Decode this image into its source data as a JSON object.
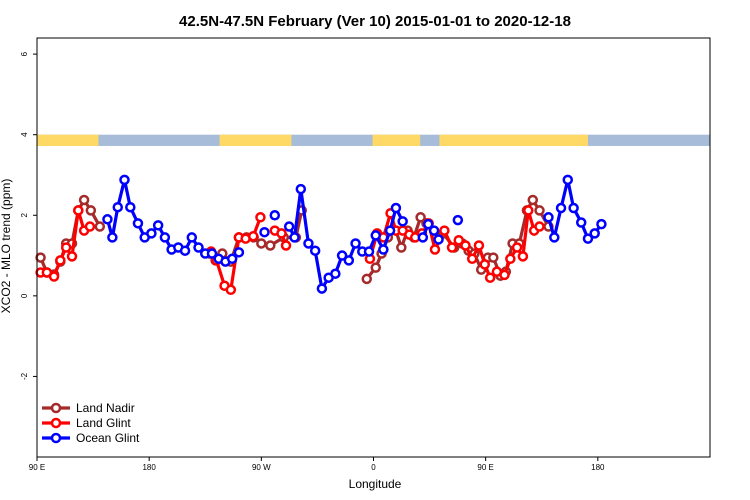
{
  "chart_data": {
    "type": "line",
    "title": "42.5N-47.5N February (Ver 10)   2015-01-01 to 2020-12-18",
    "xlabel": "Longitude",
    "ylabel": "XCO2 - MLO trend (ppm)",
    "xlim": [
      0,
      1.5
    ],
    "ylim": [
      -4,
      6.4
    ],
    "grid": false,
    "legend_position": "bottom-left",
    "x_ticks": [
      {
        "value": 0,
        "label": "90 E"
      },
      {
        "value": 0.25,
        "label": "180"
      },
      {
        "value": 0.5,
        "label": "90 W"
      },
      {
        "value": 0.75,
        "label": "0"
      },
      {
        "value": 1.0,
        "label": "90 E"
      },
      {
        "value": 1.25,
        "label": "180"
      }
    ],
    "y_ticks": [
      {
        "value": -2,
        "label": "-2"
      },
      {
        "value": 0,
        "label": "0"
      },
      {
        "value": 2,
        "label": "2"
      },
      {
        "value": 4,
        "label": "4"
      },
      {
        "value": 6,
        "label": "6"
      }
    ],
    "land_ocean_band": {
      "y_min": 3.72,
      "y_max": 4.0,
      "land_color": "#FFD966",
      "ocean_color": "#A7BCD9",
      "land_segments": [
        [
          0.0,
          0.137
        ],
        [
          0.407,
          0.567
        ],
        [
          0.748,
          0.854
        ],
        [
          0.897,
          1.16
        ],
        [
          1.157,
          1.228
        ]
      ]
    },
    "series": [
      {
        "name": "Land Nadir",
        "color": "#A52A2A",
        "segments": [
          [
            [
              0.008,
              0.95
            ],
            [
              0.022,
              0.58
            ],
            [
              0.038,
              0.53
            ],
            [
              0.052,
              0.85
            ],
            [
              0.065,
              1.3
            ],
            [
              0.078,
              1.3
            ],
            [
              0.092,
              2.12
            ],
            [
              0.105,
              2.38
            ],
            [
              0.12,
              2.12
            ],
            [
              0.14,
              1.72
            ]
          ],
          [
            [
              0.385,
              1.05
            ],
            [
              0.398,
              0.88
            ],
            [
              0.413,
              1.05
            ],
            [
              0.432,
              0.85
            ],
            [
              0.45,
              1.45
            ],
            [
              0.467,
              1.45
            ],
            [
              0.483,
              1.45
            ],
            [
              0.5,
              1.3
            ],
            [
              0.52,
              1.25
            ],
            [
              0.55,
              1.45
            ],
            [
              0.577,
              1.45
            ],
            [
              0.59,
              2.12
            ]
          ],
          [
            [
              0.735,
              0.42
            ],
            [
              0.755,
              0.7
            ],
            [
              0.768,
              1.05
            ],
            [
              0.782,
              1.45
            ],
            [
              0.8,
              1.62
            ],
            [
              0.812,
              1.2
            ],
            [
              0.826,
              1.62
            ],
            [
              0.84,
              1.45
            ],
            [
              0.855,
              1.95
            ],
            [
              0.868,
              1.8
            ],
            [
              0.89,
              1.45
            ],
            [
              0.905,
              1.55
            ],
            [
              0.93,
              1.2
            ],
            [
              0.948,
              1.3
            ],
            [
              0.962,
              1.12
            ],
            [
              0.975,
              1.05
            ],
            [
              0.99,
              0.65
            ],
            [
              1.005,
              0.95
            ],
            [
              1.017,
              0.95
            ],
            [
              1.033,
              0.5
            ],
            [
              1.045,
              0.6
            ],
            [
              1.06,
              1.3
            ],
            [
              1.075,
              1.3
            ],
            [
              1.092,
              2.12
            ],
            [
              1.105,
              2.38
            ],
            [
              1.12,
              2.12
            ],
            [
              1.14,
              1.72
            ]
          ]
        ]
      },
      {
        "name": "Land Glint",
        "color": "#FF0000",
        "segments": [
          [
            [
              0.008,
              0.58
            ],
            [
              0.022,
              0.58
            ],
            [
              0.038,
              0.48
            ],
            [
              0.052,
              0.88
            ],
            [
              0.065,
              1.2
            ],
            [
              0.078,
              0.98
            ],
            [
              0.092,
              2.12
            ],
            [
              0.105,
              1.62
            ],
            [
              0.118,
              1.72
            ]
          ],
          [
            [
              0.388,
              1.1
            ],
            [
              0.4,
              0.88
            ],
            [
              0.418,
              0.25
            ],
            [
              0.432,
              0.15
            ],
            [
              0.45,
              1.45
            ],
            [
              0.465,
              1.42
            ],
            [
              0.482,
              1.48
            ],
            [
              0.498,
              1.95
            ]
          ],
          [
            [
              0.53,
              1.62
            ],
            [
              0.545,
              1.55
            ],
            [
              0.555,
              1.25
            ]
          ],
          [
            [
              0.742,
              0.92
            ],
            [
              0.758,
              1.55
            ],
            [
              0.772,
              1.45
            ],
            [
              0.788,
              2.05
            ],
            [
              0.8,
              1.62
            ],
            [
              0.815,
              1.62
            ],
            [
              0.83,
              1.52
            ],
            [
              0.843,
              1.45
            ],
            [
              0.858,
              1.55
            ],
            [
              0.873,
              1.8
            ],
            [
              0.887,
              1.15
            ],
            [
              0.908,
              1.62
            ],
            [
              0.925,
              1.2
            ],
            [
              0.94,
              1.38
            ],
            [
              0.955,
              1.25
            ],
            [
              0.97,
              0.92
            ],
            [
              0.985,
              1.25
            ],
            [
              0.998,
              0.78
            ],
            [
              1.01,
              0.45
            ],
            [
              1.025,
              0.6
            ],
            [
              1.042,
              0.52
            ],
            [
              1.055,
              0.92
            ],
            [
              1.07,
              1.2
            ],
            [
              1.083,
              0.98
            ],
            [
              1.095,
              2.12
            ],
            [
              1.108,
              1.62
            ],
            [
              1.12,
              1.72
            ]
          ]
        ]
      },
      {
        "name": "Ocean Glint",
        "color": "#0000FF",
        "segments": [
          [
            [
              0.157,
              1.9
            ],
            [
              0.168,
              1.45
            ],
            [
              0.18,
              2.2
            ],
            [
              0.195,
              2.88
            ],
            [
              0.208,
              2.2
            ],
            [
              0.225,
              1.8
            ],
            [
              0.24,
              1.45
            ],
            [
              0.255,
              1.55
            ],
            [
              0.27,
              1.75
            ],
            [
              0.285,
              1.45
            ],
            [
              0.3,
              1.15
            ],
            [
              0.315,
              1.2
            ],
            [
              0.33,
              1.12
            ],
            [
              0.345,
              1.45
            ],
            [
              0.36,
              1.2
            ],
            [
              0.375,
              1.05
            ],
            [
              0.39,
              1.05
            ],
            [
              0.405,
              0.92
            ],
            [
              0.42,
              0.85
            ],
            [
              0.435,
              0.92
            ],
            [
              0.45,
              1.08
            ]
          ],
          [
            [
              0.507,
              1.58
            ]
          ],
          [
            [
              0.53,
              2.0
            ]
          ],
          [
            [
              0.562,
              1.72
            ],
            [
              0.574,
              1.45
            ],
            [
              0.588,
              2.65
            ],
            [
              0.605,
              1.3
            ],
            [
              0.62,
              1.12
            ],
            [
              0.635,
              0.18
            ],
            [
              0.65,
              0.45
            ],
            [
              0.665,
              0.55
            ],
            [
              0.68,
              1.0
            ],
            [
              0.695,
              0.88
            ],
            [
              0.71,
              1.3
            ],
            [
              0.725,
              1.1
            ],
            [
              0.74,
              1.1
            ],
            [
              0.755,
              1.5
            ],
            [
              0.772,
              1.15
            ],
            [
              0.787,
              1.62
            ],
            [
              0.8,
              2.18
            ],
            [
              0.815,
              1.85
            ]
          ],
          [
            [
              0.86,
              1.45
            ],
            [
              0.872,
              1.78
            ],
            [
              0.885,
              1.62
            ],
            [
              0.895,
              1.4
            ]
          ],
          [
            [
              0.938,
              1.88
            ]
          ],
          [
            [
              1.14,
              1.95
            ],
            [
              1.153,
              1.45
            ],
            [
              1.168,
              2.18
            ],
            [
              1.183,
              2.88
            ],
            [
              1.196,
              2.18
            ],
            [
              1.213,
              1.82
            ],
            [
              1.228,
              1.42
            ],
            [
              1.243,
              1.55
            ],
            [
              1.258,
              1.78
            ]
          ]
        ]
      }
    ]
  }
}
